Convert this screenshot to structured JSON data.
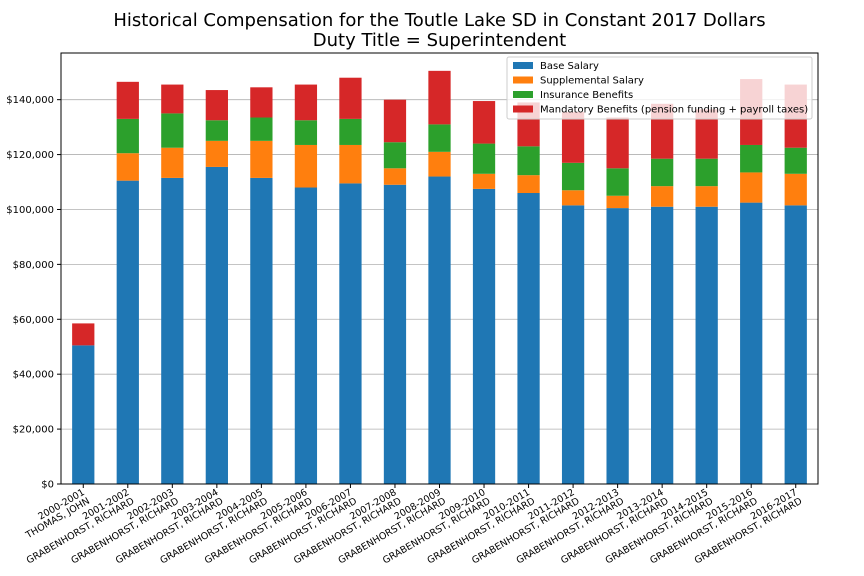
{
  "chart_data": {
    "type": "bar",
    "stacked": true,
    "title": "Historical Compensation for the Toutle Lake SD in Constant 2017 Dollars",
    "subtitle": "Duty Title = Superintendent",
    "xlabel": "",
    "ylabel": "",
    "ylim": [
      0,
      157000
    ],
    "yticks": [
      0,
      20000,
      40000,
      60000,
      80000,
      100000,
      120000,
      140000
    ],
    "ytick_labels": [
      "$0",
      "$20,000",
      "$40,000",
      "$60,000",
      "$80,000",
      "$100,000",
      "$120,000",
      "$140,000"
    ],
    "grid": "y",
    "legend_position": "top-right",
    "categories": [
      [
        "2000-2001",
        "THOMAS, JOHN"
      ],
      [
        "2001-2002",
        "GRABENHORST, RICHARD"
      ],
      [
        "2002-2003",
        "GRABENHORST, RICHARD"
      ],
      [
        "2003-2004",
        "GRABENHORST, RICHARD"
      ],
      [
        "2004-2005",
        "GRABENHORST, RICHARD"
      ],
      [
        "2005-2006",
        "GRABENHORST, RICHARD"
      ],
      [
        "2006-2007",
        "GRABENHORST, RICHARD"
      ],
      [
        "2007-2008",
        "GRABENHORST, RICHARD"
      ],
      [
        "2008-2009",
        "GRABENHORST, RICHARD"
      ],
      [
        "2009-2010",
        "GRABENHORST, RICHARD"
      ],
      [
        "2010-2011",
        "GRABENHORST, RICHARD"
      ],
      [
        "2011-2012",
        "GRABENHORST, RICHARD"
      ],
      [
        "2012-2013",
        "GRABENHORST, RICHARD"
      ],
      [
        "2013-2014",
        "GRABENHORST, RICHARD"
      ],
      [
        "2014-2015",
        "GRABENHORST, RICHARD"
      ],
      [
        "2015-2016",
        "GRABENHORST, RICHARD"
      ],
      [
        "2016-2017",
        "GRABENHORST, RICHARD"
      ]
    ],
    "series": [
      {
        "name": "Base Salary",
        "color": "#1f77b4",
        "values": [
          50500,
          110500,
          111500,
          115500,
          111500,
          108000,
          109500,
          109000,
          112000,
          107500,
          106000,
          101500,
          100500,
          101000,
          101000,
          102500,
          101500
        ]
      },
      {
        "name": "Supplemental Salary",
        "color": "#ff7f0e",
        "values": [
          0,
          10000,
          11000,
          9500,
          13500,
          15500,
          14000,
          6000,
          9000,
          5500,
          6500,
          5500,
          4500,
          7500,
          7500,
          11000,
          11500
        ]
      },
      {
        "name": "Insurance Benefits",
        "color": "#2ca02c",
        "values": [
          0,
          12500,
          12500,
          7500,
          8500,
          9000,
          9500,
          9500,
          10000,
          11000,
          10500,
          10000,
          10000,
          10000,
          10000,
          10000,
          9500
        ]
      },
      {
        "name": "Mandatory Benefits (pension funding + payroll taxes)",
        "color": "#d62728",
        "values": [
          8000,
          13500,
          10500,
          11000,
          11000,
          13000,
          15000,
          15500,
          19500,
          15500,
          16000,
          18500,
          18500,
          20000,
          18000,
          24000,
          23000
        ]
      }
    ]
  }
}
